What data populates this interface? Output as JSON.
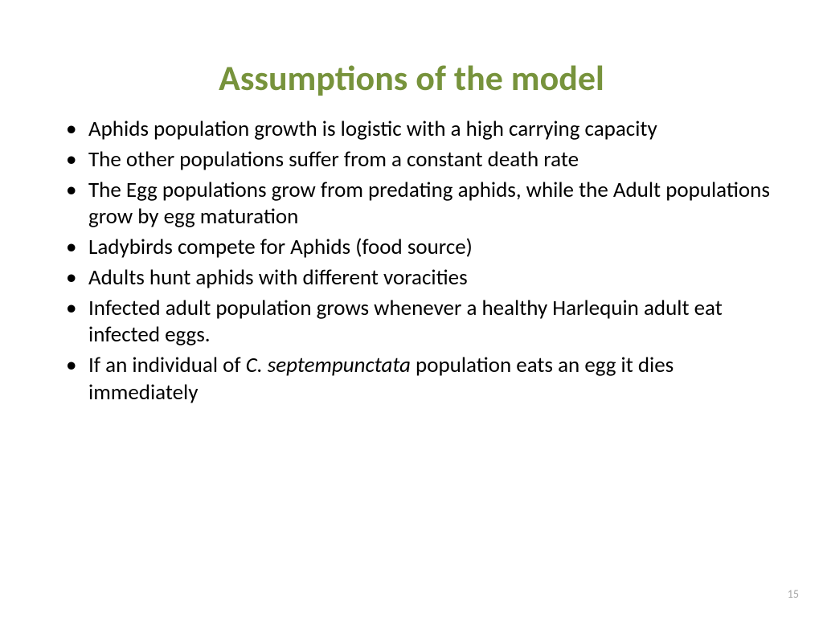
{
  "slide": {
    "title": "Assumptions of the model",
    "title_color": "#77933c",
    "title_fontsize": 44,
    "body_fontsize": 27,
    "body_color": "#000000",
    "background_color": "#ffffff",
    "bullets": [
      {
        "text": "Aphids population growth is logistic with a high carrying capacity"
      },
      {
        "text": "The other populations suffer from a constant death rate"
      },
      {
        "text": "The Egg populations grow from predating aphids, while the Adult populations grow by egg maturation"
      },
      {
        "text": "Ladybirds compete for Aphids (food source)"
      },
      {
        "text": "Adults hunt aphids with different voracities"
      },
      {
        "text": "Infected adult population grows whenever a healthy Harlequin adult eat infected eggs."
      },
      {
        "text_parts": [
          {
            "text": "If an individual of ",
            "italic": false
          },
          {
            "text": "C. septempunctata",
            "italic": true
          },
          {
            "text": " population eats an egg it dies immediately",
            "italic": false
          }
        ]
      }
    ],
    "page_number": "15",
    "page_number_color": "#a6a6a6",
    "page_number_fontsize": 14
  }
}
